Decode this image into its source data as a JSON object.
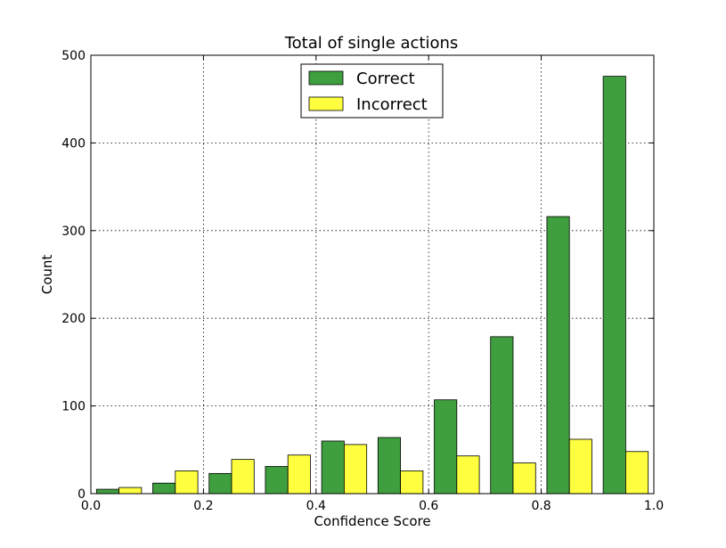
{
  "chart_data": {
    "type": "bar",
    "title": "Total of single actions",
    "xlabel": "Confidence Score",
    "ylabel": "Count",
    "xlim": [
      0.0,
      1.0
    ],
    "ylim": [
      0,
      500
    ],
    "xticks": [
      "0.0",
      "0.2",
      "0.4",
      "0.6",
      "0.8",
      "1.0"
    ],
    "yticks": [
      "0",
      "100",
      "200",
      "300",
      "400",
      "500"
    ],
    "grid": true,
    "legend_position": "top-center",
    "bin_edges": [
      0.0,
      0.1,
      0.2,
      0.3,
      0.4,
      0.5,
      0.6,
      0.7,
      0.8,
      0.9,
      1.0
    ],
    "series": [
      {
        "name": "Correct",
        "color": "#3f9f3f",
        "values": [
          5,
          12,
          23,
          31,
          60,
          64,
          107,
          179,
          316,
          476
        ]
      },
      {
        "name": "Incorrect",
        "color": "#ffff3f",
        "values": [
          7,
          26,
          39,
          44,
          56,
          26,
          43,
          35,
          62,
          48
        ]
      }
    ]
  }
}
